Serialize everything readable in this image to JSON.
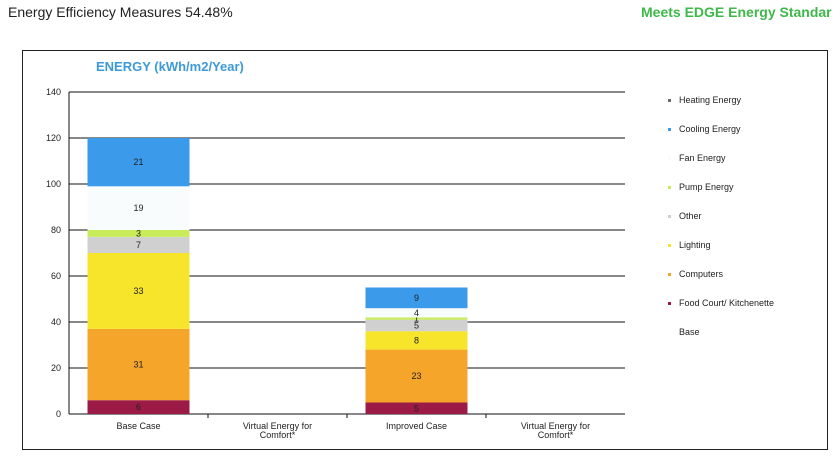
{
  "header": {
    "measure_label": "Energy Efficiency Measures 54.48%",
    "status_label": "Meets EDGE Energy Standar"
  },
  "colors": {
    "status_green": "#3fb84a",
    "title_blue": "#3d9ad8"
  },
  "chart_data": {
    "type": "bar",
    "stacked": true,
    "title": "ENERGY  (kWh/m2/Year)",
    "xlabel": "",
    "ylabel": "",
    "ylim": [
      0,
      140
    ],
    "yticks": [
      "0",
      "20",
      "40",
      "60",
      "80",
      "100",
      "120",
      "140"
    ],
    "grid": true,
    "legend_position": "right",
    "categories": [
      "Base Case",
      "Virtual Energy for Comfort*",
      "Improved Case",
      "Virtual Energy for Comfort*"
    ],
    "series": [
      {
        "name": "Food Court/ Kitchenette",
        "color": "#9b1b46",
        "values": [
          6,
          0,
          5,
          0
        ],
        "labels": [
          "6",
          "",
          "5",
          ""
        ]
      },
      {
        "name": "Computers",
        "color": "#f4a52a",
        "values": [
          31,
          0,
          23,
          0
        ],
        "labels": [
          "31",
          "",
          "23",
          ""
        ]
      },
      {
        "name": "Lighting",
        "color": "#f7e52c",
        "values": [
          33,
          0,
          8,
          0
        ],
        "labels": [
          "33",
          "",
          "8",
          ""
        ]
      },
      {
        "name": "Other",
        "color": "#d0d0d0",
        "values": [
          7,
          0,
          5,
          0
        ],
        "labels": [
          "7",
          "",
          "5",
          ""
        ]
      },
      {
        "name": "Pump Energy",
        "color": "#c9ec5a",
        "values": [
          3,
          0,
          1,
          0
        ],
        "labels": [
          "3",
          "",
          "1",
          ""
        ]
      },
      {
        "name": "Fan Energy",
        "color": "#f8fcfd",
        "values": [
          19,
          0,
          4,
          0
        ],
        "labels": [
          "19",
          "",
          "4",
          ""
        ]
      },
      {
        "name": "Cooling Energy",
        "color": "#3b9aea",
        "values": [
          21,
          0,
          9,
          0
        ],
        "labels": [
          "21",
          "",
          "9",
          ""
        ]
      },
      {
        "name": "Heating Energy",
        "color": "#6a6a6a",
        "values": [
          0,
          0,
          0,
          0
        ],
        "labels": [
          "",
          "",
          "",
          ""
        ]
      }
    ],
    "legend": [
      {
        "name": "Heating Energy",
        "color": "#6a6a6a"
      },
      {
        "name": "Cooling Energy",
        "color": "#3b9aea"
      },
      {
        "name": "Fan Energy",
        "color": "#f8fcfd"
      },
      {
        "name": "Pump Energy",
        "color": "#c9ec5a"
      },
      {
        "name": "Other",
        "color": "#d0d0d0"
      },
      {
        "name": "Lighting",
        "color": "#f7e52c"
      },
      {
        "name": "Computers",
        "color": "#f4a52a"
      },
      {
        "name": "Food Court/ Kitchenette",
        "color": "#9b1b46"
      },
      {
        "name": "Base",
        "color": "#ffffff"
      }
    ]
  }
}
